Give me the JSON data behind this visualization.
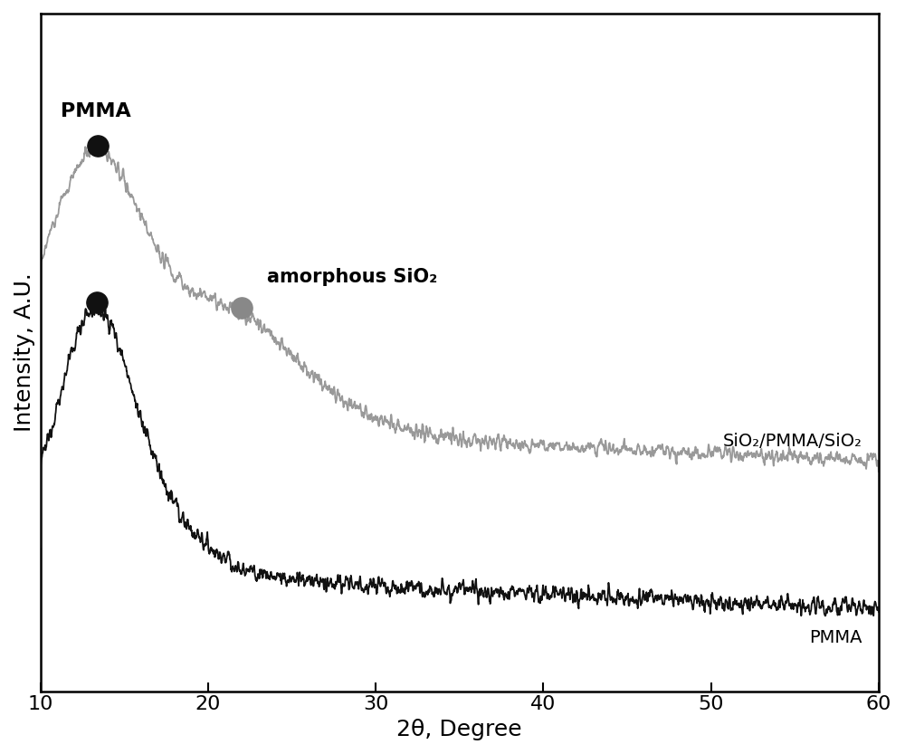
{
  "title": "",
  "xlabel": "2θ, Degree",
  "ylabel": "Intensity, A.U.",
  "xlim": [
    10,
    60
  ],
  "x_ticks": [
    10,
    20,
    30,
    40,
    50,
    60
  ],
  "background_color": "#ffffff",
  "pmma_color": "#111111",
  "sio2_color": "#999999",
  "pmma_label": "PMMA",
  "sio2_label": "SiO₂/PMMA/SiO₂",
  "annotation_pmma": "PMMA",
  "annotation_sio2": "amorphous SiO₂",
  "dot_black": "#111111",
  "dot_gray": "#888888",
  "xlabel_fontsize": 18,
  "ylabel_fontsize": 18,
  "tick_fontsize": 16,
  "annotation_fontsize": 15
}
